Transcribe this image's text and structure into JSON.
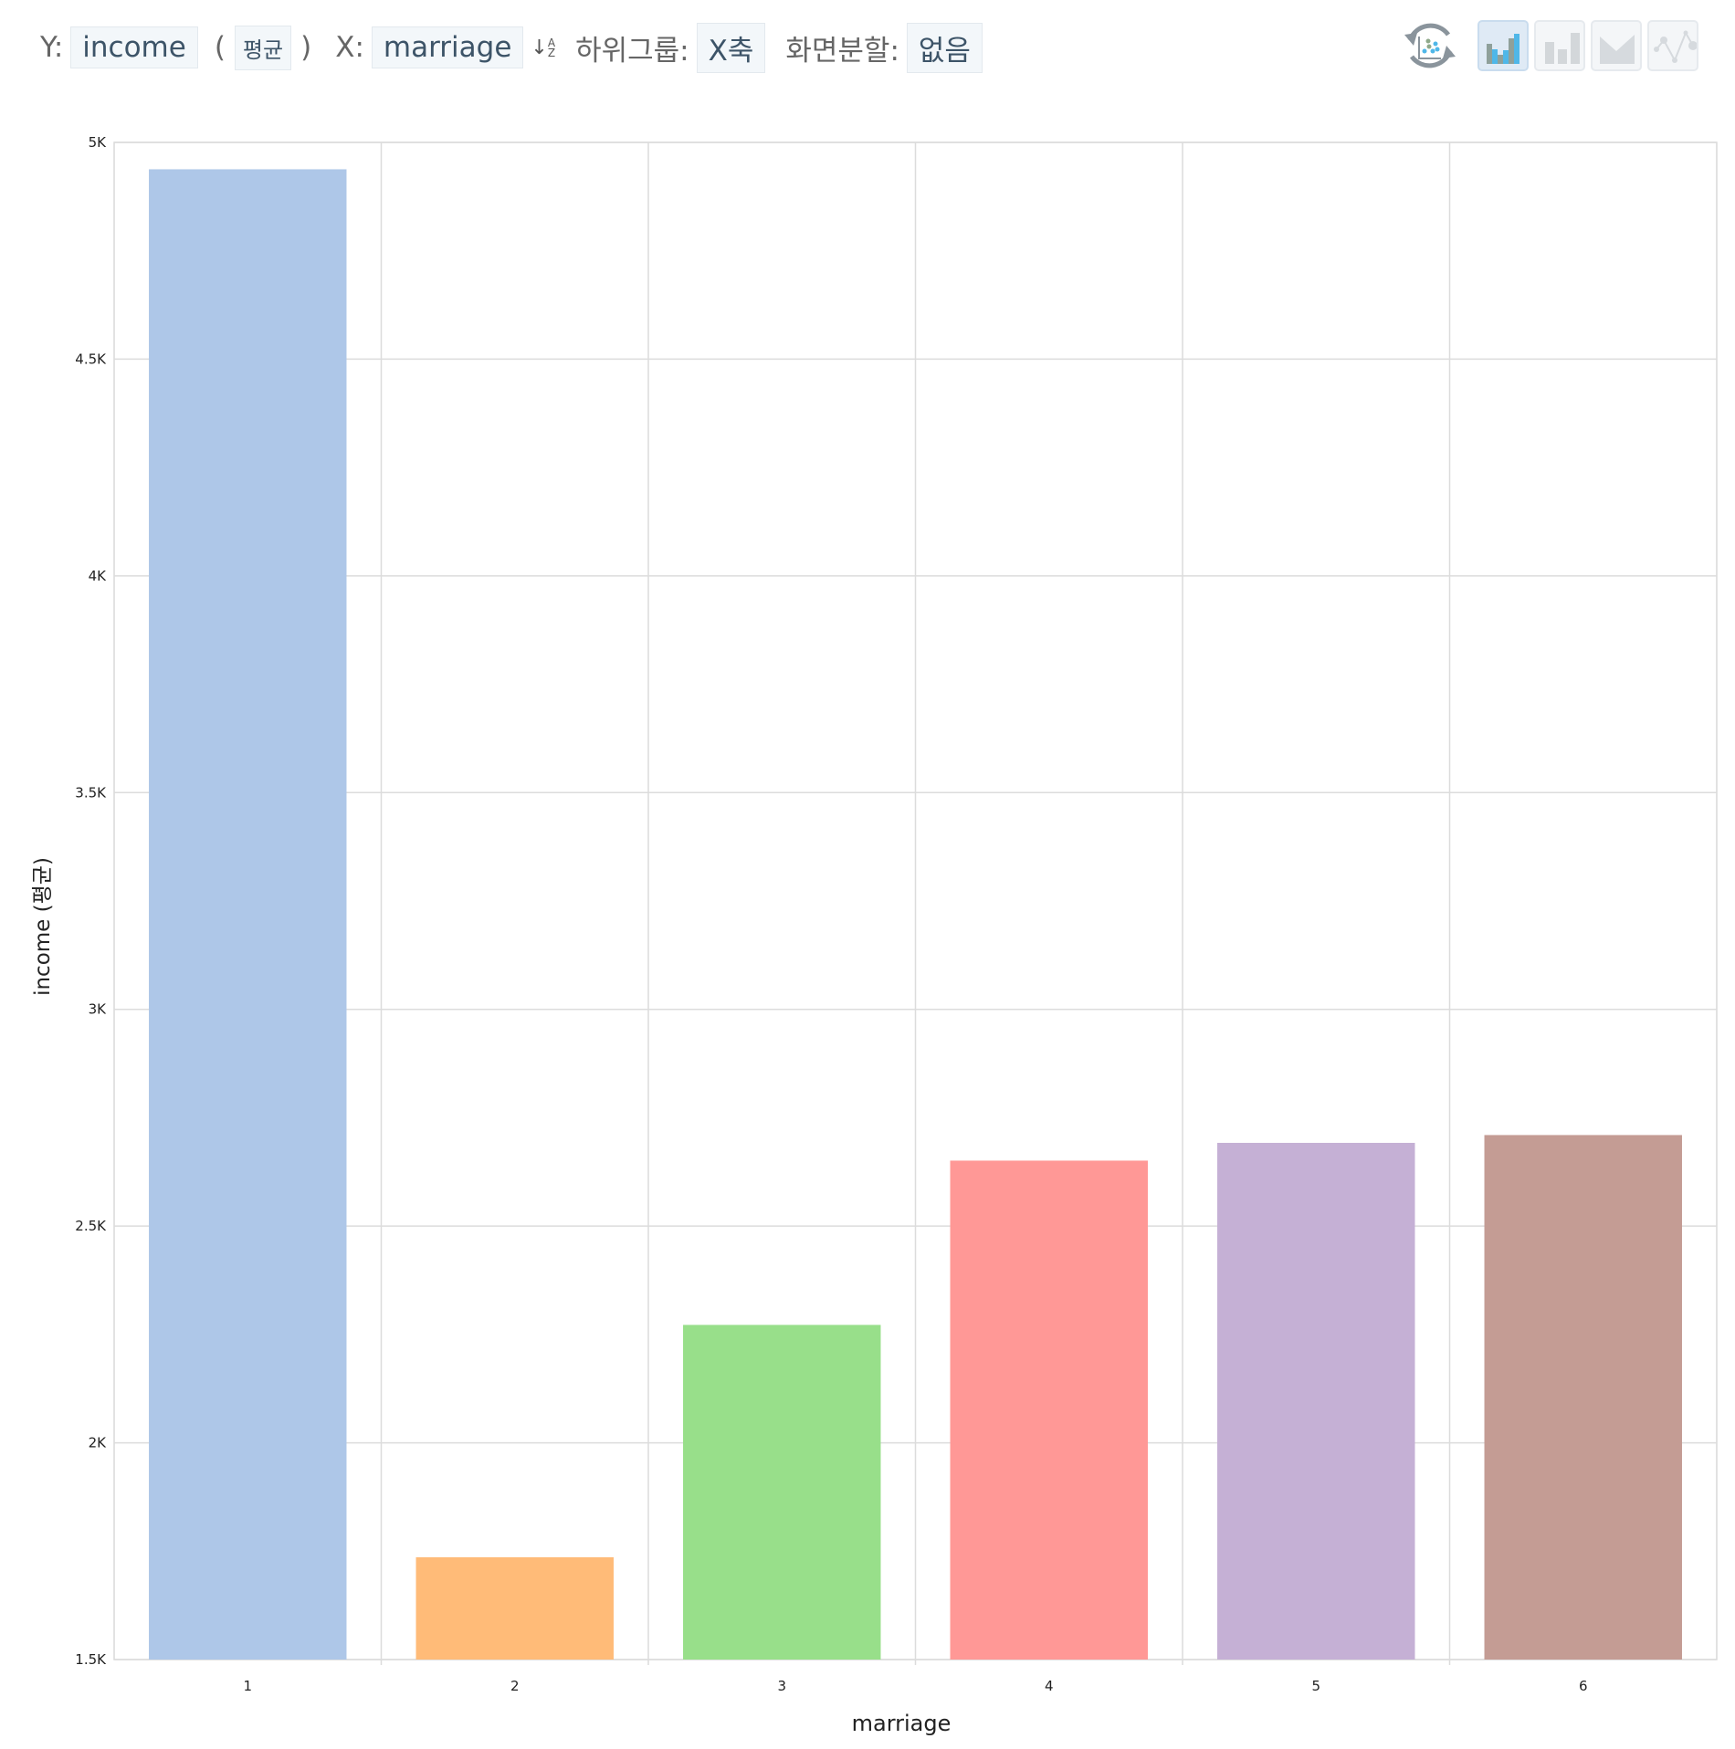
{
  "toolbar": {
    "y_label": "Y:",
    "y_field": "income",
    "paren_open": "(",
    "agg": "평균",
    "paren_close": ")",
    "x_label": "X:",
    "x_field": "marriage",
    "subgroup_label": "하위그룹:",
    "subgroup_value": "X축",
    "split_label": "화면분할:",
    "split_value": "없음",
    "icons": [
      "sort-az-icon",
      "refresh-scatter-icon",
      "bar-chart-icon",
      "bar-chart-gray-icon",
      "area-chart-icon",
      "line-chart-icon"
    ]
  },
  "chart_data": {
    "type": "bar",
    "title": "",
    "xlabel": "marriage",
    "ylabel": "income (평균)",
    "categories": [
      "1",
      "2",
      "3",
      "4",
      "5",
      "6"
    ],
    "values": [
      4938,
      1736,
      2272,
      2651,
      2692,
      2710
    ],
    "colors": [
      "#aec7e8",
      "#ffbb78",
      "#98df8a",
      "#ff9896",
      "#c5b0d5",
      "#c49c94"
    ],
    "ylim": [
      1500,
      5000
    ],
    "yticks": [
      1500,
      2000,
      2500,
      3000,
      3500,
      4000,
      4500,
      5000
    ],
    "ytick_labels": [
      "1.5K",
      "2K",
      "2.5K",
      "3K",
      "3.5K",
      "4K",
      "4.5K",
      "5K"
    ],
    "grid": true,
    "legend": "none"
  }
}
